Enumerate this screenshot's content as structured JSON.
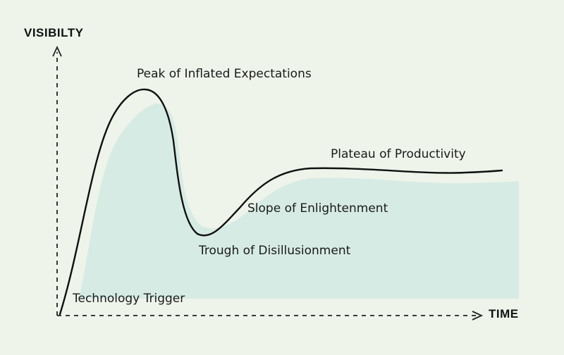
{
  "diagram": {
    "type": "hype-cycle",
    "axes": {
      "y_label": "VISIBILTY",
      "x_label": "TIME"
    },
    "phases": [
      {
        "label": "Technology Trigger"
      },
      {
        "label": "Peak of Inflated Expectations"
      },
      {
        "label": "Trough of Disillusionment"
      },
      {
        "label": "Slope of Enlightenment"
      },
      {
        "label": "Plateau of Productivity"
      }
    ],
    "colors": {
      "background": "#eef4ea",
      "shaded_area": "#d6ebe4",
      "curve": "#111111",
      "axes": "#222222"
    }
  }
}
